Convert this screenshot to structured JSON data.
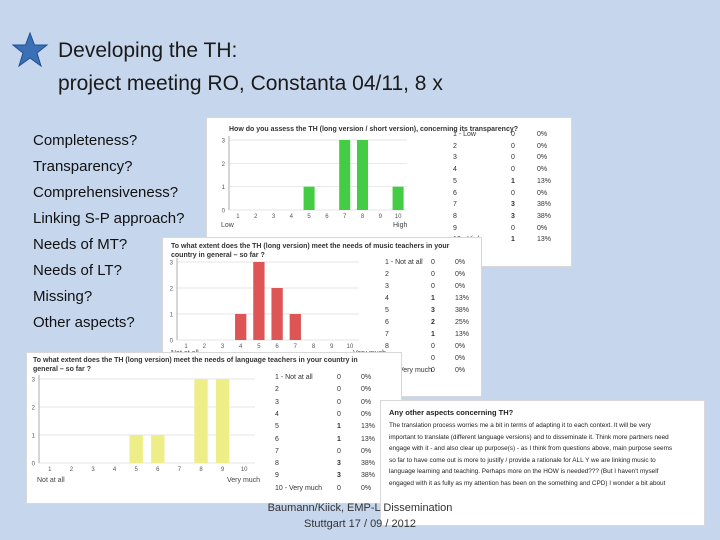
{
  "slide": {
    "title_line1": "Developing the TH:",
    "title_line2": "project meeting RO, Constanta 04/11, 8 x",
    "bullets": [
      "Completeness?",
      "Transparency?",
      "Comprehensiveness?",
      "Linking S-P approach?",
      "Needs of MT?",
      "Needs of LT?",
      "Missing?",
      "Other aspects?"
    ],
    "footer_line1": "Baumann/Kiick, EMP-L Dissemination",
    "footer_line2": "Stuttgart 17 / 09 / 2012"
  },
  "colors": {
    "background": "#c6d6ec",
    "green": "#44cc44",
    "red": "#dd5555",
    "yellow": "#eeee88"
  },
  "chart_data": [
    {
      "type": "bar",
      "title": "How do you assess the TH (long version / short version), concerning its transparency?",
      "categories": [
        "1",
        "2",
        "3",
        "4",
        "5",
        "6",
        "7",
        "8",
        "9",
        "10"
      ],
      "values": [
        0,
        0,
        0,
        0,
        1,
        0,
        3,
        3,
        0,
        1
      ],
      "percents": [
        "0%",
        "0%",
        "0%",
        "0%",
        "13%",
        "0%",
        "38%",
        "38%",
        "0%",
        "13%"
      ],
      "row_labels": [
        "1 - Low",
        "2",
        "3",
        "4",
        "5",
        "6",
        "7",
        "8",
        "9",
        "10 - High"
      ],
      "low_label": "Low",
      "high_label": "High",
      "y_ticks": [
        "3",
        "2",
        "1",
        "0"
      ],
      "ylim": [
        0,
        3
      ]
    },
    {
      "type": "bar",
      "title": "To what extent does the TH (long version) meet the needs of music teachers in your country in general – so far ?",
      "categories": [
        "1",
        "2",
        "3",
        "4",
        "5",
        "6",
        "7",
        "8",
        "9",
        "10"
      ],
      "values": [
        0,
        0,
        0,
        1,
        3,
        2,
        1,
        0,
        0,
        0
      ],
      "percents": [
        "0%",
        "0%",
        "0%",
        "13%",
        "38%",
        "25%",
        "13%",
        "0%",
        "0%",
        "0%"
      ],
      "row_labels": [
        "1 - Not at all",
        "2",
        "3",
        "4",
        "5",
        "6",
        "7",
        "8",
        "9",
        "10 - Very much"
      ],
      "low_label": "Not at all",
      "high_label": "Very much",
      "y_ticks": [
        "3",
        "2",
        "1",
        "0"
      ],
      "ylim": [
        0,
        3
      ]
    },
    {
      "type": "bar",
      "title": "To what extent does the TH (long version) meet the needs of language teachers in your country in general – so far ?",
      "categories": [
        "1",
        "2",
        "3",
        "4",
        "5",
        "6",
        "7",
        "8",
        "9",
        "10"
      ],
      "values": [
        0,
        0,
        0,
        0,
        1,
        1,
        0,
        3,
        3,
        0
      ],
      "percents": [
        "0%",
        "0%",
        "0%",
        "0%",
        "13%",
        "13%",
        "0%",
        "38%",
        "38%",
        "0%"
      ],
      "row_labels": [
        "1 - Not at all",
        "2",
        "3",
        "4",
        "5",
        "6",
        "7",
        "8",
        "9",
        "10 - Very much"
      ],
      "low_label": "Not at all",
      "high_label": "Very much",
      "y_ticks": [
        "3",
        "2",
        "1",
        "0"
      ],
      "ylim": [
        0,
        3
      ]
    }
  ],
  "comment": {
    "heading": "Any other aspects concerning TH?",
    "lines": [
      "The translation process worries me a bit in terms of adapting it to each context.      It will be very",
      "important to translate (different language versions) and to disseminate it.    Think more partners need",
      "engage with it - and also clear up purpose(s) - as I think from questions above, main purpose seems",
      "so far to have come out is more to justify / provide a rationale for ALL Y we are linking music to",
      "language learning and teaching. Perhaps more on the HOW is needed??? (But I haven't myself",
      "engaged with it as fully as my attention has been on the something and CPD)    I wonder a bit about"
    ]
  }
}
